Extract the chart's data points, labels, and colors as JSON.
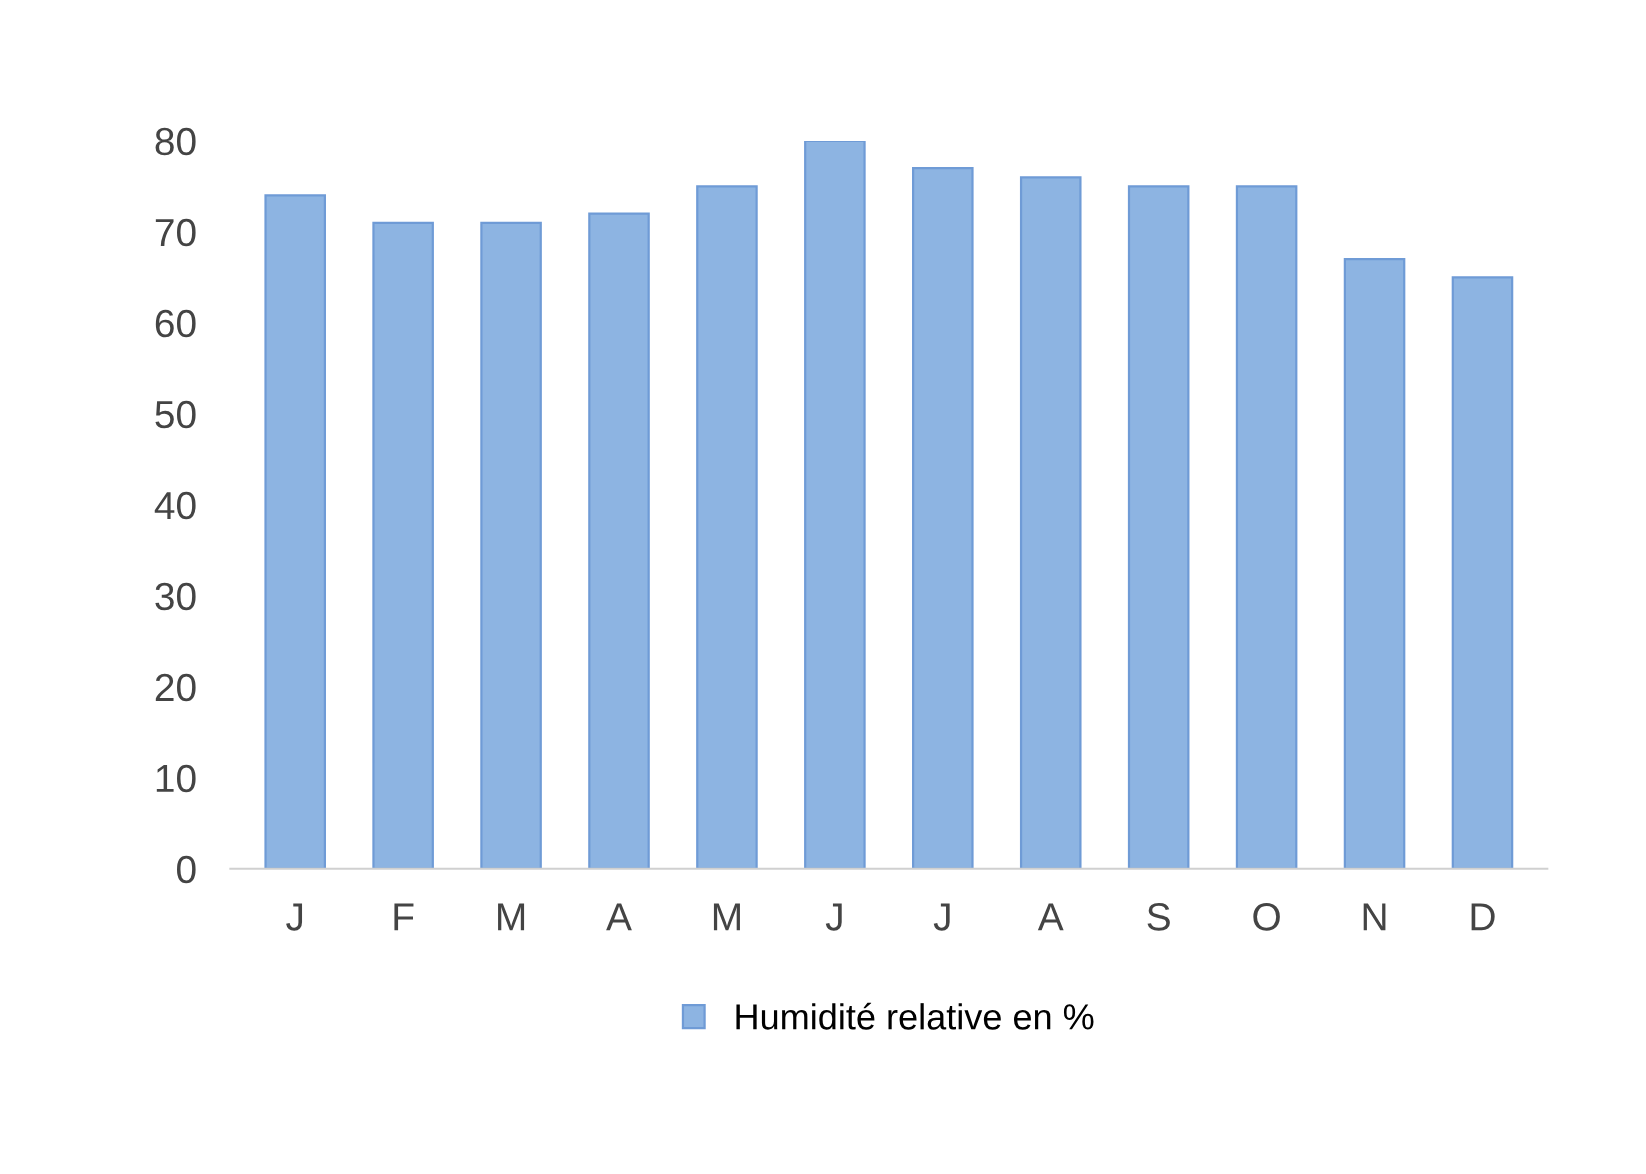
{
  "chart_data": {
    "type": "bar",
    "categories": [
      "J",
      "F",
      "M",
      "A",
      "M",
      "J",
      "J",
      "A",
      "S",
      "O",
      "N",
      "D"
    ],
    "series": [
      {
        "name": "Humidité relative en %",
        "color": "#8db4e2",
        "values": [
          74,
          71,
          71,
          72,
          75,
          80,
          77,
          76,
          75,
          75,
          67,
          65
        ]
      }
    ],
    "ylim": [
      0,
      80
    ],
    "yticks": [
      0,
      10,
      20,
      30,
      40,
      50,
      60,
      70,
      80
    ],
    "grid": false,
    "legend": "bottom"
  }
}
